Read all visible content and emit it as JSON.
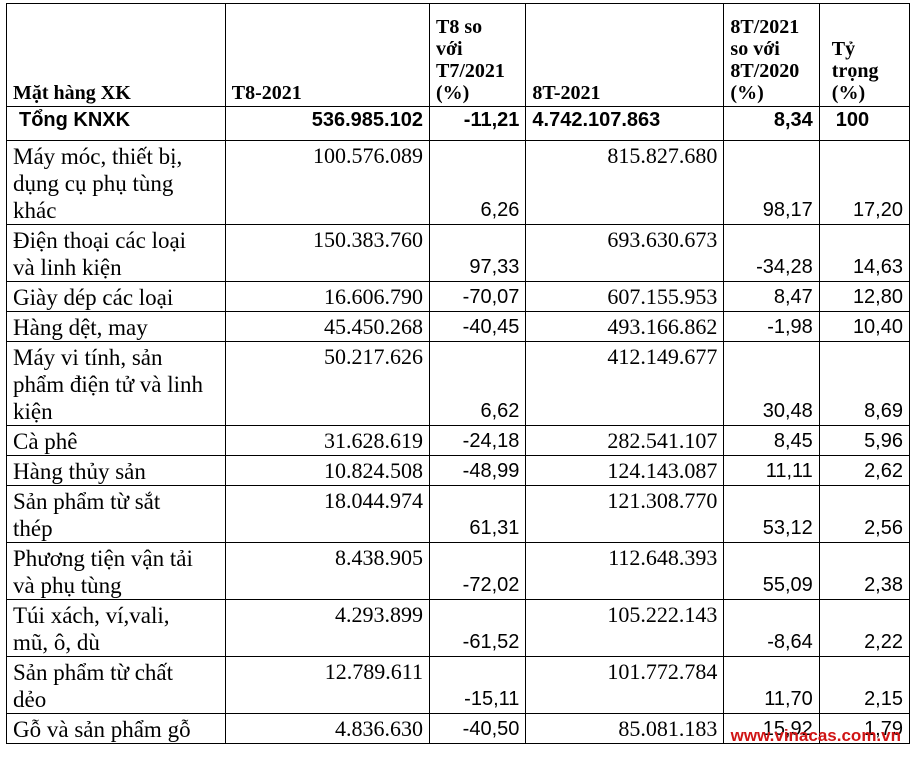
{
  "headers": {
    "item": "Mặt hàng XK",
    "t8": "T8-2021",
    "t8_vs_t7": [
      "T8 so",
      "với",
      "T7/2021",
      "(%)"
    ],
    "eight_months": "8T-2021",
    "eight_vs": [
      "8T/2021",
      "so với",
      "8T/2020",
      "(%)"
    ],
    "share": [
      "Tỷ",
      "trọng",
      "(%)"
    ]
  },
  "total": {
    "label": "Tổng KNXK",
    "t8": "536.985.102",
    "t8_vs_t7": "-11,21",
    "eight_months": "4.742.107.863",
    "eight_vs": "8,34",
    "share": "100"
  },
  "rows": [
    {
      "name": [
        "Máy móc, thiết bị,",
        "dụng cụ phụ tùng",
        "khác"
      ],
      "t8": "100.576.089",
      "t8_vs_t7": "6,26",
      "eight_months": "815.827.680",
      "eight_vs": "98,17",
      "share": "17,20"
    },
    {
      "name": [
        "Điện thoại các loại",
        "và linh kiện"
      ],
      "t8": "150.383.760",
      "t8_vs_t7": "97,33",
      "eight_months": "693.630.673",
      "eight_vs": "-34,28",
      "share": "14,63"
    },
    {
      "name": [
        "Giày dép các loại"
      ],
      "t8": "16.606.790",
      "t8_vs_t7": "-70,07",
      "eight_months": "607.155.953",
      "eight_vs": "8,47",
      "share": "12,80"
    },
    {
      "name": [
        "Hàng dệt, may"
      ],
      "t8": "45.450.268",
      "t8_vs_t7": "-40,45",
      "eight_months": "493.166.862",
      "eight_vs": "-1,98",
      "share": "10,40"
    },
    {
      "name": [
        "Máy vi tính, sản",
        "phẩm điện tử và linh",
        "kiện"
      ],
      "t8": "50.217.626",
      "t8_vs_t7": "6,62",
      "eight_months": "412.149.677",
      "eight_vs": "30,48",
      "share": "8,69"
    },
    {
      "name": [
        "Cà phê"
      ],
      "t8": "31.628.619",
      "t8_vs_t7": "-24,18",
      "eight_months": "282.541.107",
      "eight_vs": "8,45",
      "share": "5,96"
    },
    {
      "name": [
        "Hàng thủy sản"
      ],
      "t8": "10.824.508",
      "t8_vs_t7": "-48,99",
      "eight_months": "124.143.087",
      "eight_vs": "11,11",
      "share": "2,62"
    },
    {
      "name": [
        "Sản phẩm từ sắt",
        "thép"
      ],
      "t8": "18.044.974",
      "t8_vs_t7": "61,31",
      "eight_months": "121.308.770",
      "eight_vs": "53,12",
      "share": "2,56"
    },
    {
      "name": [
        "Phương tiện vận tải",
        "và phụ tùng"
      ],
      "t8": "8.438.905",
      "t8_vs_t7": "-72,02",
      "eight_months": "112.648.393",
      "eight_vs": "55,09",
      "share": "2,38"
    },
    {
      "name": [
        "Túi xách, ví,vali,",
        "mũ, ô, dù"
      ],
      "t8": "4.293.899",
      "t8_vs_t7": "-61,52",
      "eight_months": "105.222.143",
      "eight_vs": "-8,64",
      "share": "2,22"
    },
    {
      "name": [
        "Sản phẩm từ chất",
        "dẻo"
      ],
      "t8": "12.789.611",
      "t8_vs_t7": "-15,11",
      "eight_months": "101.772.784",
      "eight_vs": "11,70",
      "share": "2,15"
    },
    {
      "name": [
        "Gỗ và sản phẩm gỗ"
      ],
      "t8": "4.836.630",
      "t8_vs_t7": "-40,50",
      "eight_months": "85.081.183",
      "eight_vs": "15,92",
      "share": "1,79"
    }
  ],
  "watermark": "www.vinacas.com.vn",
  "colors": {
    "watermark": "#d01616",
    "border": "#000000",
    "text": "#000000"
  }
}
